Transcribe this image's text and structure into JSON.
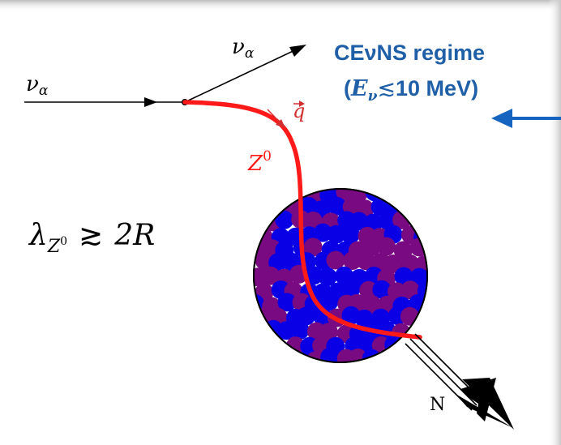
{
  "regime": {
    "title": "CEνNS regime",
    "condition_open": "(",
    "condition_E": "E",
    "condition_sub": "ν",
    "condition_rel": "≲",
    "condition_value": "10 MeV",
    "condition_close": ")",
    "color": "#1f5fa8"
  },
  "labels": {
    "nu_in": "ν",
    "nu_in_sub": "α",
    "nu_out": "ν",
    "nu_out_sub": "α",
    "q": "q",
    "z_boson": "Z",
    "z_sup": "0",
    "lambda": "λ",
    "lambda_sub": "Z",
    "lambda_sub_sup": "0",
    "relation": "≳",
    "rhs": "2R",
    "nucleus": "N"
  },
  "colors": {
    "boson": "#ff1a1a",
    "q_arrow": "#d32f2f",
    "proton": "#0a00e6",
    "neutron": "#7a0a82",
    "arrow_blue": "#1565c0"
  }
}
